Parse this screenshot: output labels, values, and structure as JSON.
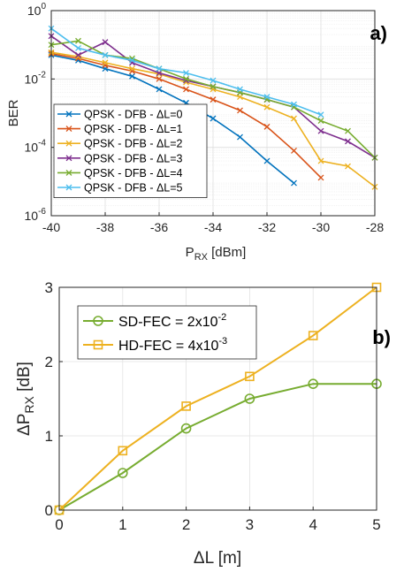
{
  "chart_data": [
    {
      "type": "line",
      "panel_label": "a)",
      "xlabel": "P",
      "xlabel_sub": "RX",
      "xlabel_unit": " [dBm]",
      "ylabel": "BER",
      "xlim": [
        -40,
        -28
      ],
      "ylim": [
        1e-06,
        1
      ],
      "yscale": "log",
      "xticks": [
        -40,
        -38,
        -36,
        -34,
        -32,
        -30,
        -28
      ],
      "xtick_labels": [
        "-40",
        "-38",
        "-36",
        "-34",
        "-32",
        "-30",
        "-28"
      ],
      "yticks": [
        {
          "base": "10",
          "exp": "-6",
          "value": 1e-06
        },
        {
          "base": "10",
          "exp": "-4",
          "value": 0.0001
        },
        {
          "base": "10",
          "exp": "-2",
          "value": 0.01
        },
        {
          "base": "10",
          "exp": "0",
          "value": 1
        }
      ],
      "grid": true,
      "legend_position": "bottom-left",
      "series": [
        {
          "name": "QPSK - DFB - ΔL=0",
          "color": "#0072BD",
          "marker": "x",
          "x": [
            -40,
            -39,
            -38,
            -37,
            -36,
            -35,
            -34,
            -33,
            -32,
            -31
          ],
          "y": [
            0.05,
            0.035,
            0.02,
            0.012,
            0.005,
            0.002,
            0.0007,
            0.0002,
            4e-05,
            9e-06
          ]
        },
        {
          "name": "QPSK - DFB - ΔL=1",
          "color": "#D95319",
          "marker": "x",
          "x": [
            -40,
            -39,
            -38,
            -37,
            -36,
            -35,
            -34,
            -33,
            -32,
            -31,
            -30
          ],
          "y": [
            0.055,
            0.04,
            0.025,
            0.017,
            0.01,
            0.005,
            0.0025,
            0.0012,
            0.0004,
            8e-05,
            1.3e-05
          ]
        },
        {
          "name": "QPSK - DFB - ΔL=2",
          "color": "#EDB120",
          "marker": "x",
          "x": [
            -40,
            -39,
            -38,
            -37,
            -36,
            -35,
            -34,
            -33,
            -32,
            -31,
            -30,
            -29,
            -28
          ],
          "y": [
            0.06,
            0.045,
            0.03,
            0.02,
            0.014,
            0.008,
            0.005,
            0.003,
            0.0015,
            0.0007,
            4e-05,
            2.8e-05,
            7e-06
          ]
        },
        {
          "name": "QPSK - DFB - ΔL=3",
          "color": "#7E2F8E",
          "marker": "x",
          "x": [
            -40,
            -39,
            -38,
            -37,
            -36,
            -35,
            -34,
            -33,
            -32,
            -31,
            -30,
            -29,
            -28
          ],
          "y": [
            0.18,
            0.05,
            0.12,
            0.03,
            0.015,
            0.009,
            0.006,
            0.004,
            0.0025,
            0.0015,
            0.0003,
            0.00015,
            5e-05
          ]
        },
        {
          "name": "QPSK - DFB - ΔL=4",
          "color": "#77AC30",
          "marker": "x",
          "x": [
            -40,
            -39,
            -38,
            -37,
            -36,
            -35,
            -34,
            -33,
            -32,
            -31,
            -30,
            -29,
            -28
          ],
          "y": [
            0.1,
            0.13,
            0.05,
            0.04,
            0.02,
            0.01,
            0.006,
            0.004,
            0.0025,
            0.0015,
            0.0006,
            0.0003,
            5e-05
          ]
        },
        {
          "name": "QPSK - DFB - ΔL=5",
          "color": "#4DBEEE",
          "marker": "x",
          "x": [
            -40,
            -39,
            -38,
            -37,
            -36,
            -35,
            -34,
            -33,
            -32,
            -31,
            -30
          ],
          "y": [
            0.3,
            0.08,
            0.05,
            0.035,
            0.02,
            0.015,
            0.009,
            0.005,
            0.003,
            0.0018,
            0.0009
          ]
        }
      ]
    },
    {
      "type": "line",
      "panel_label": "b)",
      "xlabel": "ΔL [m]",
      "ylabel_prefix": "ΔP",
      "ylabel_sub": "RX",
      "ylabel_unit": " [dB]",
      "xlim": [
        0,
        5
      ],
      "ylim": [
        0,
        3
      ],
      "xticks": [
        0,
        1,
        2,
        3,
        4,
        5
      ],
      "xtick_labels": [
        "0",
        "1",
        "2",
        "3",
        "4",
        "5"
      ],
      "yticks": [
        0,
        1,
        2,
        3
      ],
      "ytick_labels": [
        "0",
        "1",
        "2",
        "3"
      ],
      "grid": true,
      "legend_position": "top-left",
      "series": [
        {
          "name_prefix": "SD-FEC = 2x10",
          "name_exp": "-2",
          "color": "#77AC30",
          "marker": "circle",
          "x": [
            0,
            1,
            2,
            3,
            4,
            5
          ],
          "y": [
            0,
            0.5,
            1.1,
            1.5,
            1.7,
            1.7
          ]
        },
        {
          "name_prefix": "HD-FEC = 4x10",
          "name_exp": "-3",
          "color": "#EDB120",
          "marker": "square",
          "x": [
            0,
            1,
            2,
            3,
            4,
            5
          ],
          "y": [
            0,
            0.8,
            1.4,
            1.8,
            2.35,
            3.0
          ]
        }
      ]
    }
  ]
}
